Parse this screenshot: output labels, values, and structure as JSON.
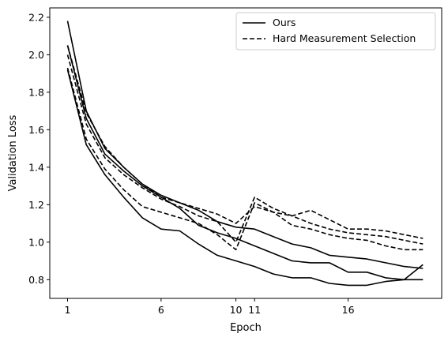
{
  "chart_data": {
    "type": "line",
    "title": "",
    "xlabel": "Epoch",
    "ylabel": "Validation Loss",
    "xlim": [
      0.05,
      21.0
    ],
    "ylim": [
      0.7,
      2.25
    ],
    "xticks": [
      1,
      6,
      10,
      11,
      16
    ],
    "yticks": [
      0.8,
      1.0,
      1.2,
      1.4,
      1.6,
      1.8,
      2.0,
      2.2
    ],
    "ytick_labels": [
      "0.8",
      "1.0",
      "1.2",
      "1.4",
      "1.6",
      "1.8",
      "2.0",
      "2.2"
    ],
    "grid": false,
    "legend": {
      "placement": "upper-right",
      "entries": [
        {
          "label": "Ours",
          "style": "solid"
        },
        {
          "label": "Hard Measurement Selection",
          "style": "dashed"
        }
      ]
    },
    "color": "#000000",
    "series": [
      {
        "style": "solid",
        "x": [
          1,
          2,
          3,
          4,
          5,
          6,
          7,
          8,
          9,
          10,
          11,
          12,
          13,
          14,
          15,
          16,
          17,
          18,
          19,
          20
        ],
        "y": [
          2.18,
          1.7,
          1.5,
          1.4,
          1.31,
          1.25,
          1.21,
          1.17,
          1.11,
          1.08,
          1.07,
          1.03,
          0.99,
          0.97,
          0.93,
          0.92,
          0.91,
          0.89,
          0.87,
          0.86
        ]
      },
      {
        "style": "solid",
        "x": [
          1,
          2,
          3,
          4,
          5,
          6,
          7,
          8,
          9,
          10,
          11,
          12,
          13,
          14,
          15,
          16,
          17,
          18,
          19,
          20
        ],
        "y": [
          2.05,
          1.66,
          1.47,
          1.38,
          1.3,
          1.24,
          1.18,
          1.09,
          1.05,
          1.02,
          0.98,
          0.94,
          0.9,
          0.89,
          0.89,
          0.84,
          0.84,
          0.81,
          0.8,
          0.88
        ]
      },
      {
        "style": "solid",
        "x": [
          1,
          2,
          3,
          4,
          5,
          6,
          7,
          8,
          9,
          10,
          11,
          12,
          13,
          14,
          15,
          16,
          17,
          18,
          19,
          20
        ],
        "y": [
          1.92,
          1.52,
          1.36,
          1.24,
          1.13,
          1.07,
          1.06,
          0.99,
          0.93,
          0.9,
          0.87,
          0.83,
          0.81,
          0.81,
          0.78,
          0.77,
          0.77,
          0.79,
          0.8,
          0.8
        ]
      },
      {
        "style": "dashed",
        "x": [
          1,
          2,
          3,
          4,
          5,
          6,
          7,
          8,
          9,
          10,
          11,
          12,
          13,
          14,
          15,
          16,
          17,
          18,
          19,
          20
        ],
        "y": [
          2.05,
          1.69,
          1.51,
          1.4,
          1.31,
          1.24,
          1.21,
          1.18,
          1.15,
          1.1,
          1.19,
          1.16,
          1.14,
          1.17,
          1.12,
          1.07,
          1.07,
          1.06,
          1.04,
          1.02
        ]
      },
      {
        "style": "dashed",
        "x": [
          1,
          2,
          3,
          4,
          5,
          6,
          7,
          8,
          9,
          10,
          11,
          12,
          13,
          14,
          15,
          16,
          17,
          18,
          19,
          20
        ],
        "y": [
          2.0,
          1.63,
          1.45,
          1.36,
          1.29,
          1.23,
          1.19,
          1.14,
          1.11,
          1.0,
          1.24,
          1.18,
          1.14,
          1.1,
          1.07,
          1.05,
          1.04,
          1.03,
          1.01,
          0.99
        ]
      },
      {
        "style": "dashed",
        "x": [
          1,
          2,
          3,
          4,
          5,
          6,
          7,
          8,
          9,
          10,
          11,
          12,
          13,
          14,
          15,
          16,
          17,
          18,
          19,
          20
        ],
        "y": [
          1.93,
          1.55,
          1.39,
          1.28,
          1.19,
          1.16,
          1.13,
          1.1,
          1.04,
          0.96,
          1.21,
          1.16,
          1.09,
          1.07,
          1.04,
          1.02,
          1.01,
          0.98,
          0.96,
          0.96
        ]
      }
    ]
  }
}
